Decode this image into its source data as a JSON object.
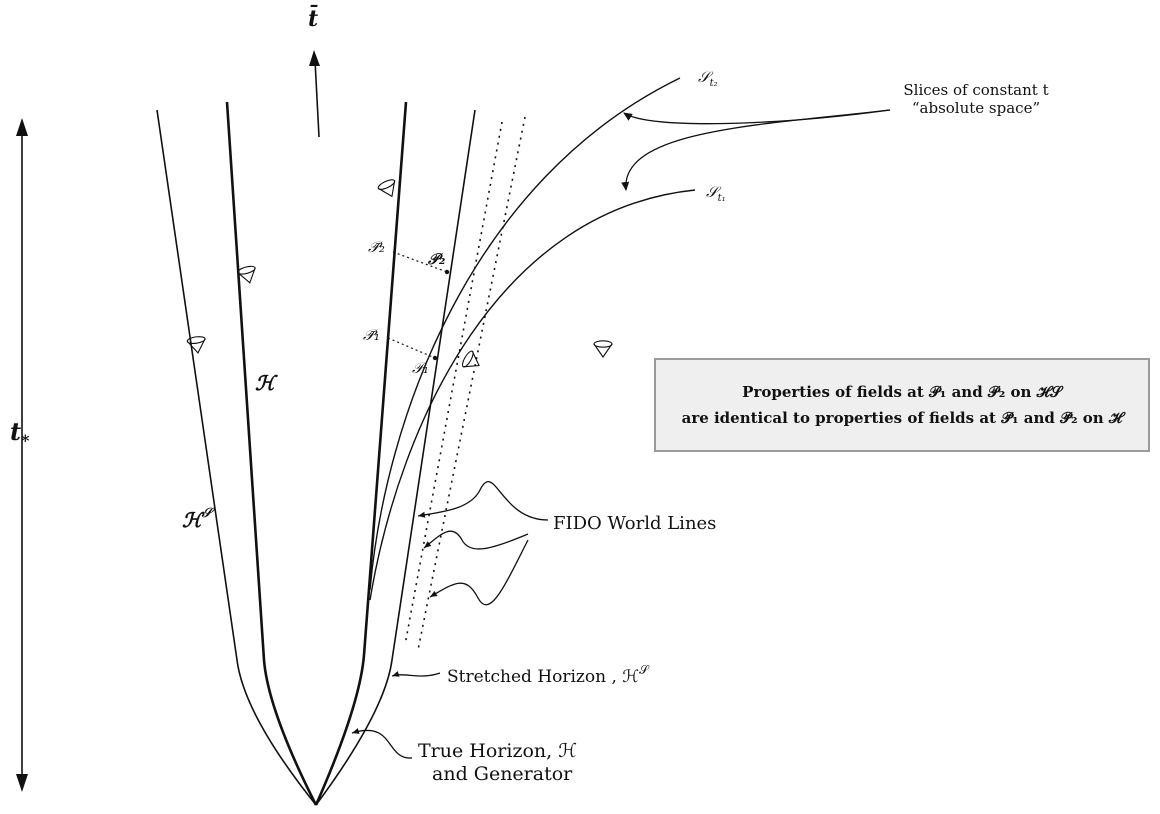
{
  "axes": {
    "time_bar": "t̄",
    "t_star": "t",
    "t_star_sub": "*"
  },
  "slices": {
    "s_t2": "𝒮",
    "s_t2_sub": "t₂",
    "s_t1": "𝒮",
    "s_t1_sub": "t₁",
    "annotation_line1": "Slices of constant t",
    "annotation_line2": "“absolute space”"
  },
  "horizons": {
    "h_label": "ℋ",
    "hs_label": "ℋ",
    "hs_sup": "𝒮"
  },
  "points": {
    "p1": "𝒫₁",
    "p2": "𝒫₂",
    "p1bar": "𝒫̄₁",
    "p2bar": "𝒫̄₂"
  },
  "labels": {
    "fido": "FIDO World Lines",
    "stretched": "Stretched Horizon , ℋ",
    "stretched_sup": "𝒮",
    "true_horizon_line1": "True Horizon, ℋ",
    "true_horizon_line2": "and Generator"
  },
  "note": {
    "line1": "Properties of fields at 𝒫₁ and 𝒫₂ on ℋ𝒮",
    "line2": "are identical to properties of fields at 𝒫̄₁ and 𝒫̄₂ on ℋ"
  }
}
